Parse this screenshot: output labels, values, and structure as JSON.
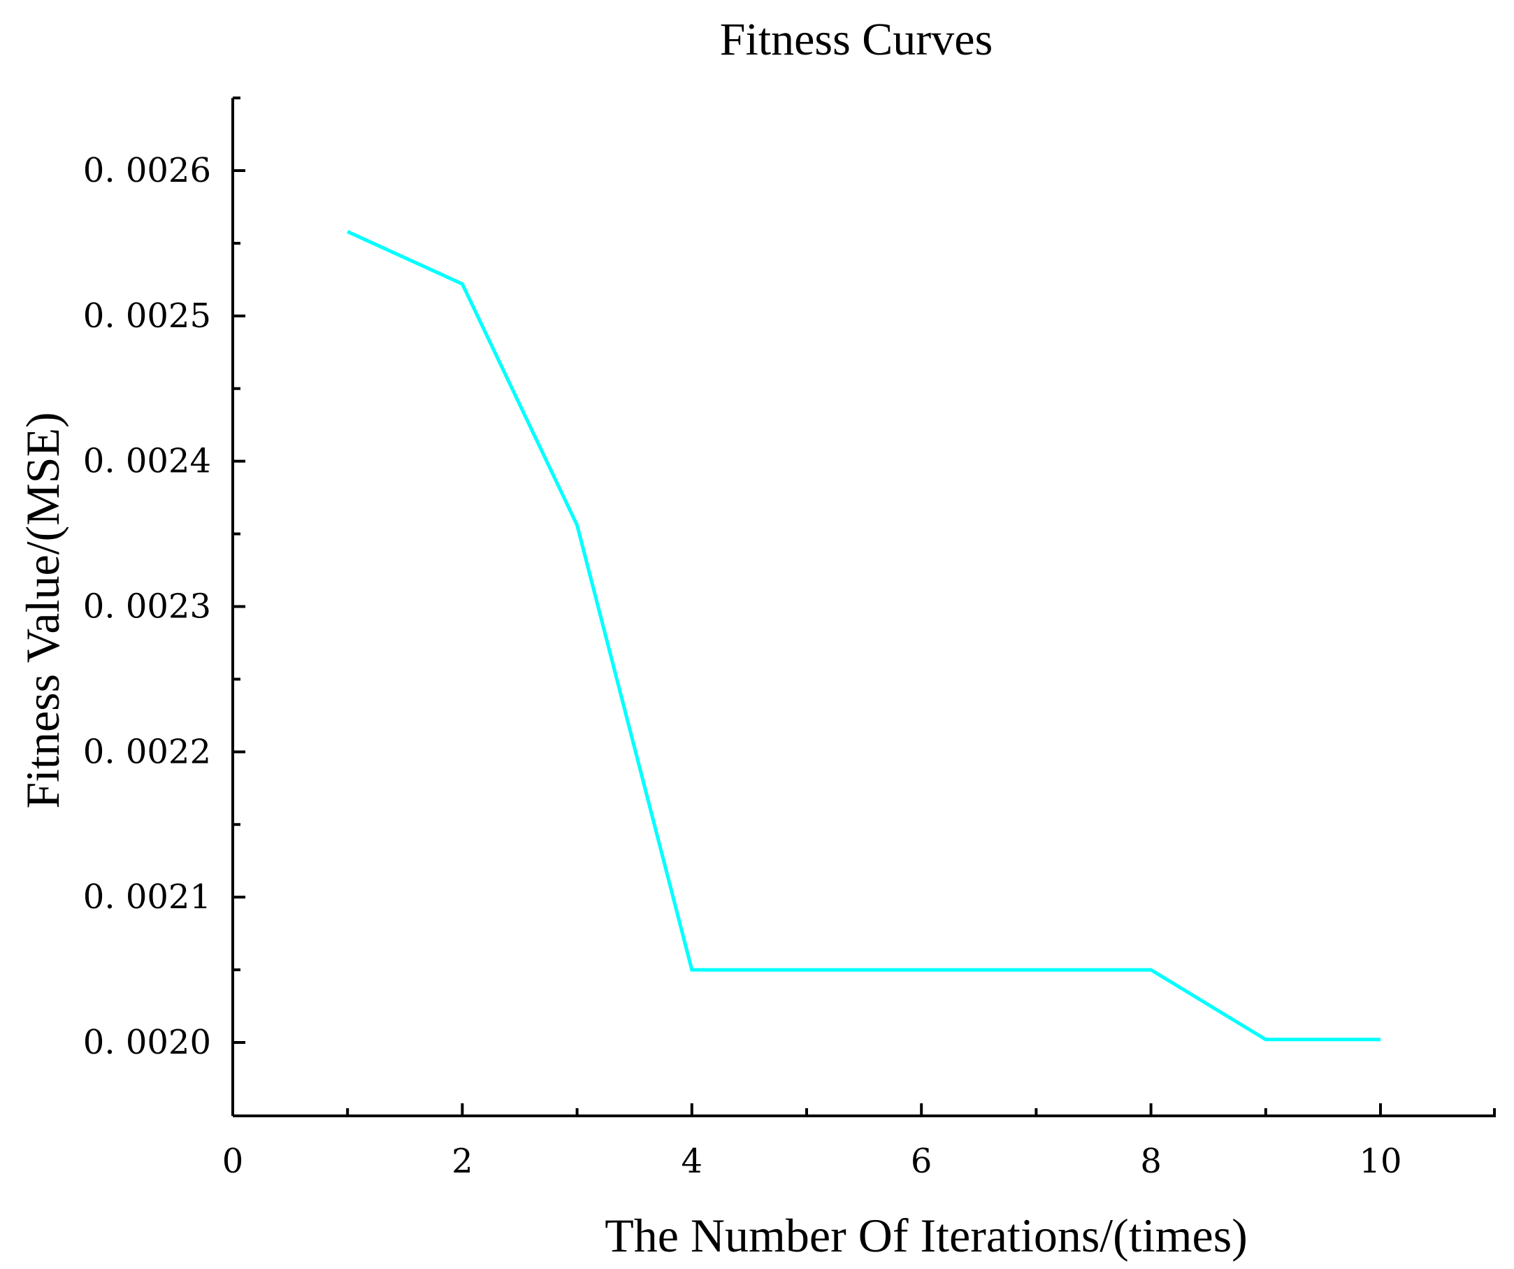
{
  "chart_data": {
    "type": "line",
    "title": "Fitness Curves",
    "xlabel": "The Number Of Iterations/(times)",
    "ylabel": "Fitness Value/(MSE)",
    "xlim": [
      0,
      11
    ],
    "ylim": [
      0.00195,
      0.00265
    ],
    "x_ticks": [
      0,
      2,
      4,
      6,
      8,
      10
    ],
    "x_tick_labels": [
      "0",
      "2",
      "4",
      "6",
      "8",
      "10"
    ],
    "x_minor_ticks": [
      1,
      3,
      5,
      7,
      9,
      11
    ],
    "y_ticks": [
      0.002,
      0.0021,
      0.0022,
      0.0023,
      0.0024,
      0.0025,
      0.0026
    ],
    "y_tick_labels": [
      "0. 0020",
      "0. 0021",
      "0. 0022",
      "0. 0023",
      "0. 0024",
      "0. 0025",
      "0. 0026"
    ],
    "y_minor_ticks": [
      0.00205,
      0.00215,
      0.00225,
      0.00235,
      0.00245,
      0.00255,
      0.00265
    ],
    "grid": false,
    "legend": "none",
    "series": [
      {
        "name": "Fitness",
        "color": "#00FFFF",
        "x": [
          1,
          2,
          3,
          4,
          5,
          6,
          7,
          8,
          9,
          10
        ],
        "values": [
          0.002558,
          0.002522,
          0.002356,
          0.00205,
          0.00205,
          0.00205,
          0.00205,
          0.00205,
          0.002002,
          0.002002
        ]
      }
    ]
  }
}
